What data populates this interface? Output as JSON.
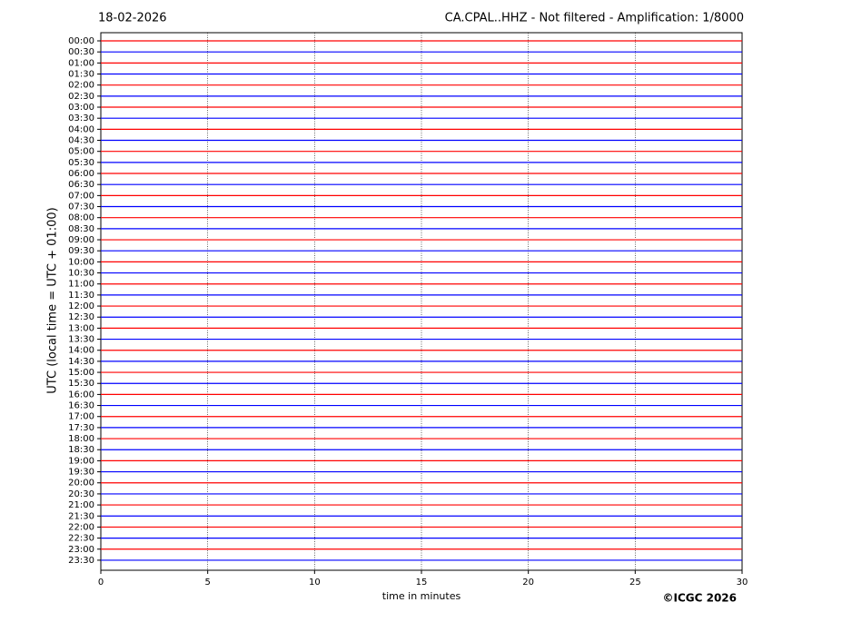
{
  "chart_data": {
    "type": "helicorder",
    "date": "18-02-2026",
    "title": "CA.CPAL..HHZ - Not filtered - Amplification: 1/8000",
    "ylabel": "UTC (local time = UTC + 01:00)",
    "xlabel": "time in minutes",
    "credit": "©ICGC 2026",
    "categories": [
      "00:00",
      "00:30",
      "01:00",
      "01:30",
      "02:00",
      "02:30",
      "03:00",
      "03:30",
      "04:00",
      "04:30",
      "05:00",
      "05:30",
      "06:00",
      "06:30",
      "07:00",
      "07:30",
      "08:00",
      "08:30",
      "09:00",
      "09:30",
      "10:00",
      "10:30",
      "11:00",
      "11:30",
      "12:00",
      "12:30",
      "13:00",
      "13:30",
      "14:00",
      "14:30",
      "15:00",
      "15:30",
      "16:00",
      "16:30",
      "17:00",
      "17:30",
      "18:00",
      "18:30",
      "19:00",
      "19:30",
      "20:00",
      "20:30",
      "21:00",
      "21:30",
      "22:00",
      "22:30",
      "23:00",
      "23:30"
    ],
    "trace_colors": [
      "#ff0000",
      "#0000ff"
    ],
    "xlim": [
      0,
      30
    ],
    "xticks": [
      0,
      5,
      10,
      15,
      20,
      25,
      30
    ],
    "grid": true
  }
}
